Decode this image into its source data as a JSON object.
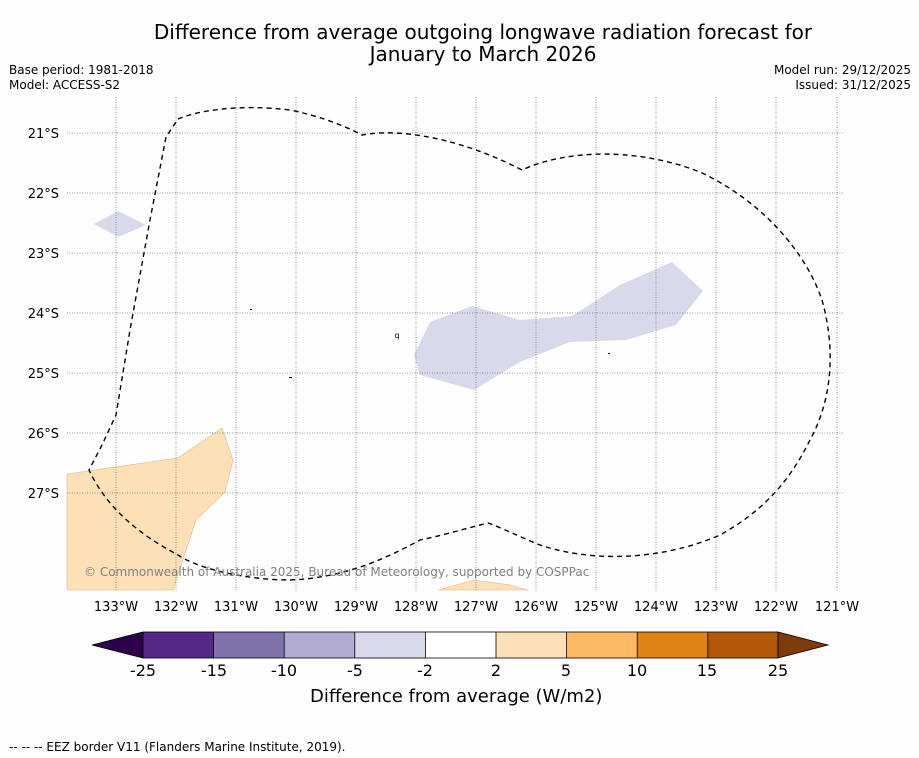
{
  "title": {
    "line1": "Difference from average outgoing longwave radiation forecast for",
    "line2": "January to March 2026"
  },
  "info": {
    "base_period": "Base period: 1981-2018",
    "model": "Model: ACCESS-S2",
    "model_run": "Model run: 29/12/2025",
    "issued": "Issued: 31/12/2025"
  },
  "map": {
    "lon_labels": [
      "133°W",
      "132°W",
      "131°W",
      "130°W",
      "129°W",
      "128°W",
      "127°W",
      "126°W",
      "125°W",
      "124°W",
      "123°W",
      "122°W",
      "121°W"
    ],
    "lat_labels": [
      "21°S",
      "22°S",
      "23°S",
      "24°S",
      "25°S",
      "26°S",
      "27°S"
    ],
    "copyright": "© Commonwealth of Australia 2025, Bureau of Meteorology, supported by COSPPac",
    "island_label": "q"
  },
  "colorbar": {
    "title": "Difference from average (W/m2)",
    "ticks": [
      "-25",
      "-15",
      "-10",
      "-5",
      "-2",
      "2",
      "5",
      "10",
      "15",
      "25"
    ],
    "colors": {
      "below": "#2d004b",
      "bins": [
        "#542788",
        "#8073ac",
        "#b2abd2",
        "#d8daeb",
        "#ffffff",
        "#fee0b6",
        "#fdb863",
        "#e08214",
        "#b35806"
      ],
      "above": "#7f3b08"
    }
  },
  "footer": {
    "eez_note": "--  --  -- EEZ border V11 (Flanders Marine Institute, 2019)."
  }
}
